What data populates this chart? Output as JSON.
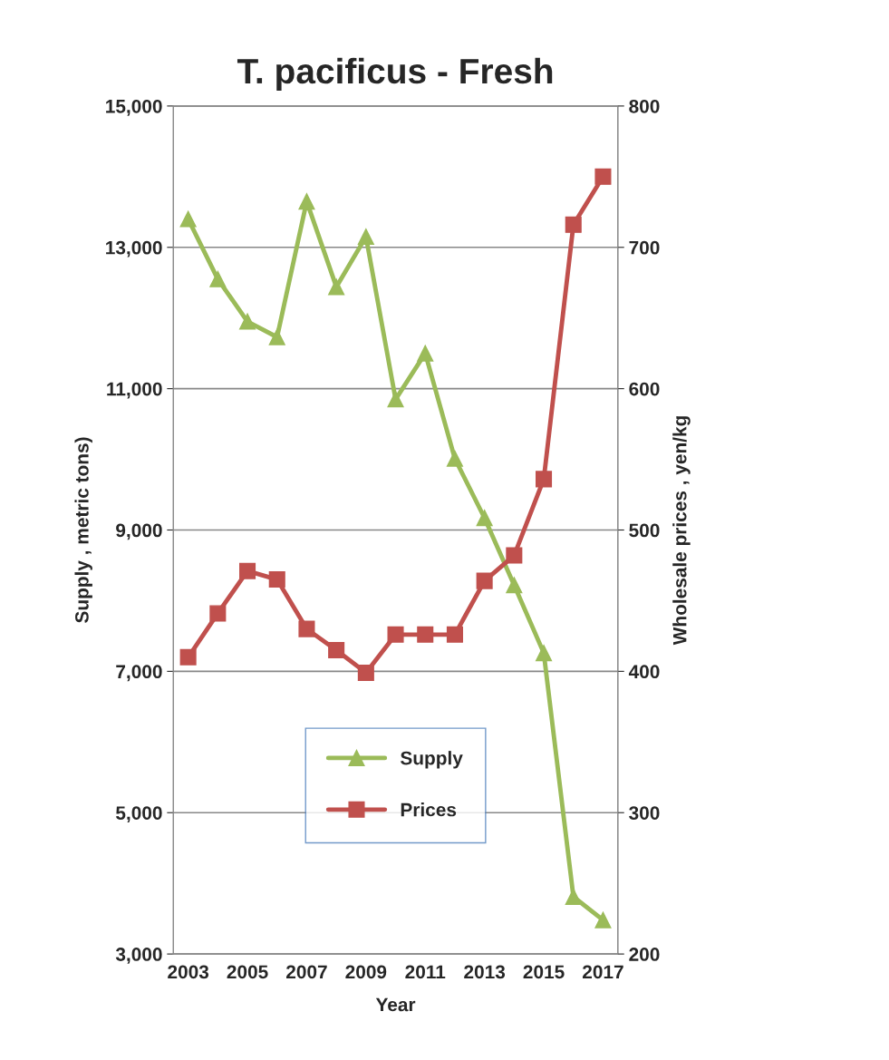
{
  "chart_data": {
    "type": "line",
    "title": "T. pacificus - Fresh",
    "xlabel": "Year",
    "ylabel": "Supply , metric tons)",
    "y2label": "Wholesale prices , yen/kg",
    "x": [
      2003,
      2004,
      2005,
      2006,
      2007,
      2008,
      2009,
      2010,
      2011,
      2012,
      2013,
      2014,
      2015,
      2016,
      2017
    ],
    "series": [
      {
        "name": "Supply",
        "color": "#9bbb59",
        "marker": "triangle",
        "values": [
          13400,
          12550,
          11950,
          11730,
          13650,
          12440,
          13150,
          10850,
          11500,
          10010,
          9170,
          8220,
          7260,
          3810,
          3480
        ]
      },
      {
        "name": "Prices",
        "color": "#c0504d",
        "marker": "square",
        "axis": "y2",
        "values": [
          410,
          441,
          471,
          465,
          430,
          415,
          399,
          426,
          426,
          426,
          464,
          482,
          536,
          716,
          750
        ]
      }
    ],
    "xlim": [
      2002.5,
      2017.5
    ],
    "xticks": [
      2003,
      2005,
      2007,
      2009,
      2011,
      2013,
      2015,
      2017
    ],
    "ylim": [
      3000,
      15000
    ],
    "yticks": [
      {
        "value": 3000,
        "label": "3,000"
      },
      {
        "value": 5000,
        "label": "5,000"
      },
      {
        "value": 7000,
        "label": "7,000"
      },
      {
        "value": 9000,
        "label": "9,000"
      },
      {
        "value": 11000,
        "label": "11,000"
      },
      {
        "value": 13000,
        "label": "13,000"
      },
      {
        "value": 15000,
        "label": "15,000"
      }
    ],
    "y2lim": [
      200,
      800
    ],
    "y2ticks": [
      200,
      300,
      400,
      500,
      600,
      700,
      800
    ],
    "grid": "y",
    "legend": "bottom",
    "line_style": "solid"
  }
}
